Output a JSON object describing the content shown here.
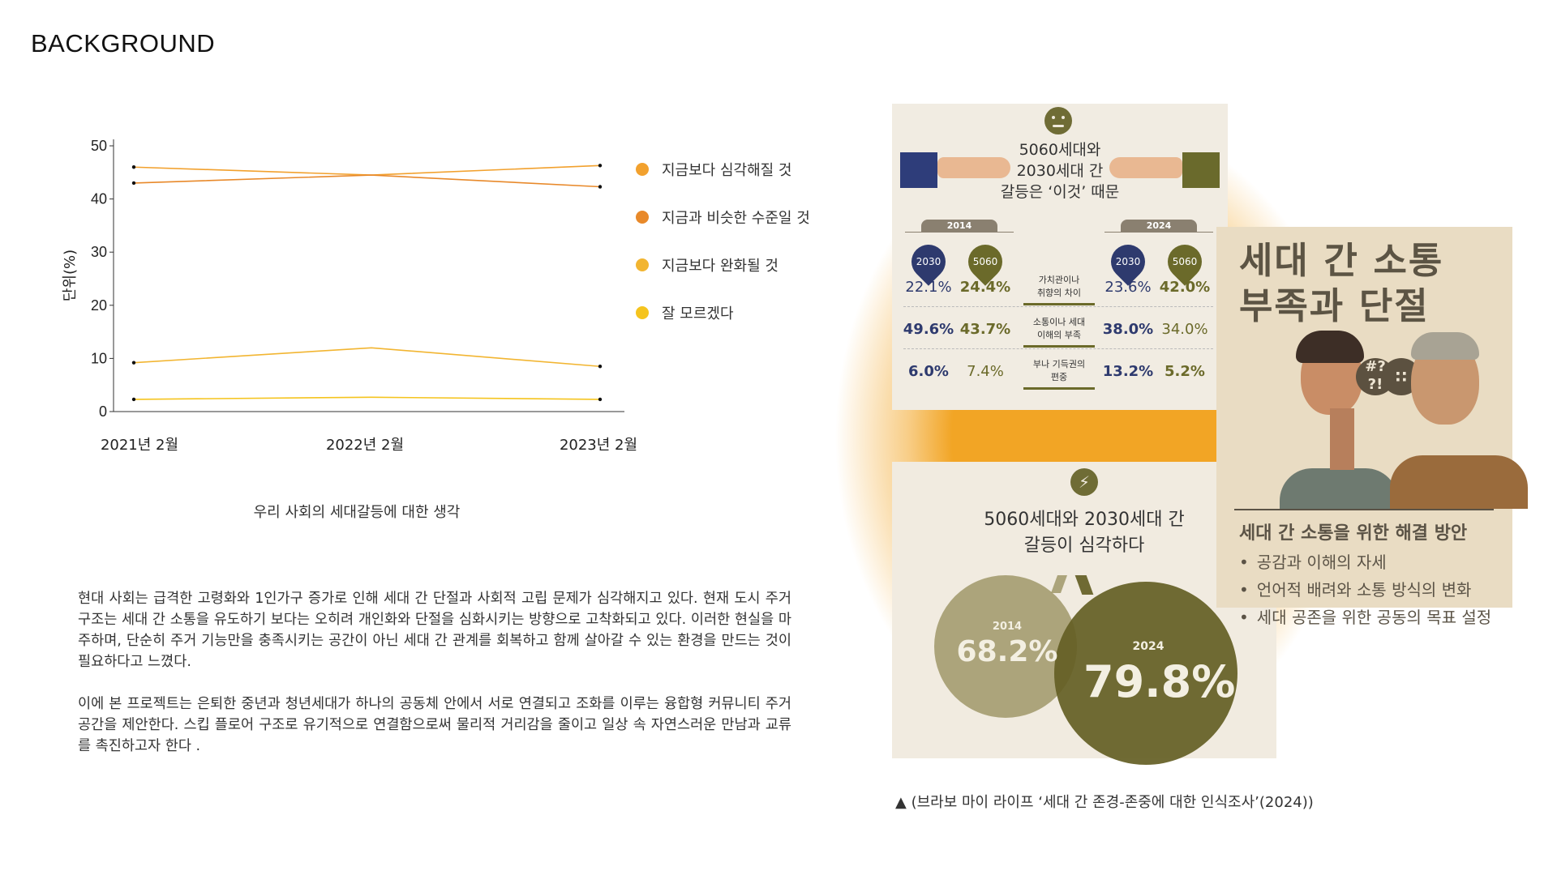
{
  "page": {
    "title": "BACKGROUND",
    "chart_caption": "우리 사회의 세대갈등에 대한 생각",
    "paragraph1": "현대 사회는 급격한 고령화와 1인가구 증가로 인해 세대 간 단절과 사회적 고립 문제가 심각해지고 있다. 현재 도시 주거 구조는 세대 간 소통을 유도하기 보다는 오히려 개인화와 단절을 심화시키는 방향으로 고착화되고 있다. 이러한 현실을 마주하며, 단순히 주거 기능만을 충족시키는 공간이 아닌 세대 간 관계를 회복하고 함께 살아갈 수 있는 환경을 만드는 것이 필요하다고 느꼈다.",
    "paragraph2": "이에 본 프로젝트는 은퇴한 중년과 청년세대가 하나의 공동체 안에서 서로 연결되고 조화를 이루는 융합형 커뮤니티 주거공간을 제안한다. 스킵 플로어 구조로 유기적으로 연결함으로써 물리적 거리감을 줄이고 일상 속 자연스러운 만남과 교류를 촉진하고자 한다 .",
    "source": "▲ (브라보 마이 라이프 ‘세대 간 존경-존중에 대한 인식조사’(2024))"
  },
  "chart_data": {
    "type": "line",
    "x": [
      "2021년 2월",
      "2022년 2월",
      "2023년 2월"
    ],
    "ylabel": "단위(%)",
    "ylim": [
      0,
      50
    ],
    "yticks": [
      0,
      10,
      20,
      30,
      40,
      50
    ],
    "grid": false,
    "legend_position": "right",
    "series": [
      {
        "name": "지금보다 심각해질 것",
        "values": [
          46.0,
          44.5,
          46.3
        ],
        "color": "#f2a12e"
      },
      {
        "name": "지금과 비슷한 수준일 것",
        "values": [
          43.0,
          44.5,
          42.3
        ],
        "color": "#e8892a"
      },
      {
        "name": "지금보다 완화될 것",
        "values": [
          9.2,
          12.0,
          8.5
        ],
        "color": "#f2b531"
      },
      {
        "name": "잘 모르겠다",
        "values": [
          2.3,
          2.7,
          2.3
        ],
        "color": "#f5c41e"
      }
    ]
  },
  "infographic": {
    "top_title": [
      "5060세대와",
      "2030세대 간",
      "갈등은 ‘이것’ 때문"
    ],
    "year_left": "2014",
    "year_right": "2024",
    "group_a": "2030",
    "group_b": "5060",
    "color_a": "#2e3a6e",
    "color_b": "#6b6a2a",
    "rows": [
      {
        "label": [
          "가치관이나",
          "취향의 차이"
        ],
        "l_a": "22.1%",
        "l_b": "24.4%",
        "r_a": "23.6%",
        "r_b": "42.0%"
      },
      {
        "label": [
          "소통이나 세대",
          "이해의 부족"
        ],
        "l_a": "49.6%",
        "l_b": "43.7%",
        "r_a": "38.0%",
        "r_b": "34.0%"
      },
      {
        "label": [
          "부나 기득권의",
          "편중"
        ],
        "l_a": "6.0%",
        "l_b": "7.4%",
        "r_a": "13.2%",
        "r_b": "5.2%"
      }
    ],
    "bottom_title": [
      "5060세대와 2030세대 간",
      "갈등이 심각하다"
    ],
    "bubble_left_year": "2014",
    "bubble_left_value": "68.2%",
    "bubble_right_year": "2024",
    "bubble_right_value": "79.8%",
    "right_head": [
      "세대 간 소통",
      "부족과 단절"
    ],
    "right_sub": "세대 간 소통을 위한 해결 방안",
    "right_bullets": [
      "공감과 이해의 자세",
      "언어적 배려와 소통 방식의 변화",
      "세대 공존을 위한 공동의 목표 설정"
    ]
  }
}
